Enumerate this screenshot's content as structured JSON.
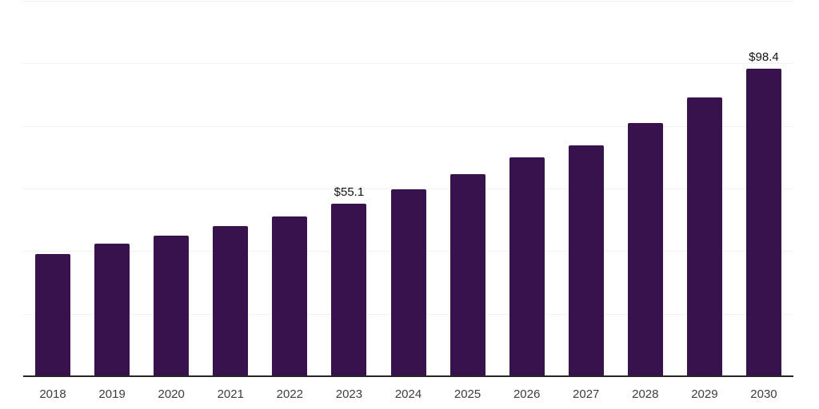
{
  "chart_data": {
    "type": "bar",
    "title": "",
    "xlabel": "",
    "ylabel": "",
    "categories": [
      "2018",
      "2019",
      "2020",
      "2021",
      "2022",
      "2023",
      "2024",
      "2025",
      "2026",
      "2027",
      "2028",
      "2029",
      "2030"
    ],
    "values": [
      39.0,
      42.5,
      45.0,
      48.0,
      51.1,
      55.1,
      59.7,
      64.7,
      69.9,
      73.9,
      81.0,
      89.0,
      98.4
    ],
    "annotations": [
      {
        "index": 5,
        "text": "$55.1"
      },
      {
        "index": 12,
        "text": "$98.4"
      }
    ],
    "ylim": [
      0,
      120
    ],
    "grid_step": 20,
    "grid": true,
    "legend": "none",
    "colors": {
      "bar": "#38124d",
      "gridline": "#f2f2f2",
      "axis_line": "#262626",
      "tick_label": "#3d3d3d",
      "value_label": "#111111",
      "background": "#ffffff"
    }
  }
}
